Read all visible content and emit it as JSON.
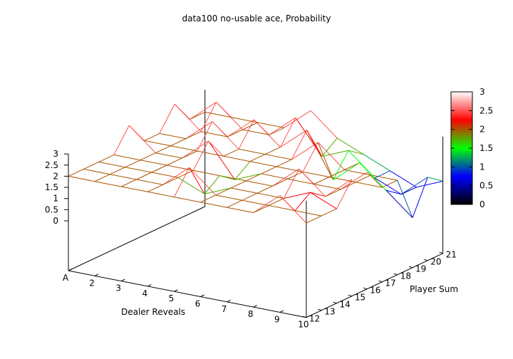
{
  "chart_data": {
    "type": "surface",
    "title": "data100 no-usable ace, Probability",
    "xlabel": "Dealer Reveals",
    "ylabel": "Player Sum",
    "zlabel": "",
    "x": [
      "A",
      "2",
      "3",
      "4",
      "5",
      "6",
      "7",
      "8",
      "9",
      "10"
    ],
    "y": [
      "12",
      "13",
      "14",
      "15",
      "16",
      "17",
      "18",
      "19",
      "20",
      "21"
    ],
    "zlim": [
      0,
      3
    ],
    "z_ticks": [
      "0",
      "0.5",
      "1",
      "1.5",
      "2",
      "2.5",
      "3"
    ],
    "grid": false,
    "colorbox": {
      "position": "right",
      "ticks": [
        "0",
        "0.5",
        "1",
        "1.5",
        "2",
        "2.5",
        "3"
      ],
      "palette": [
        "#000000",
        "#0000ff",
        "#00ff00",
        "#ff0000",
        "#ffffff"
      ]
    },
    "values": [
      [
        2.0,
        2.0,
        2.0,
        2.0,
        2.0,
        2.0,
        2.0,
        2.0,
        3.0,
        2.0
      ],
      [
        2.0,
        2.0,
        2.0,
        2.0,
        3.0,
        2.0,
        2.0,
        2.0,
        2.0,
        2.0
      ],
      [
        2.0,
        2.0,
        2.0,
        2.0,
        1.5,
        2.0,
        2.0,
        2.0,
        2.5,
        2.0
      ],
      [
        2.0,
        2.0,
        2.0,
        2.0,
        2.0,
        2.0,
        2.0,
        3.0,
        2.0,
        3.0
      ],
      [
        3.0,
        2.0,
        2.0,
        3.0,
        1.5,
        2.0,
        2.0,
        2.0,
        2.0,
        3.0
      ],
      [
        2.0,
        2.0,
        2.0,
        2.0,
        2.0,
        2.0,
        2.0,
        2.0,
        2.0,
        2.0
      ],
      [
        2.0,
        2.0,
        3.0,
        2.0,
        2.0,
        2.0,
        3.0,
        2.0,
        2.0,
        2.0
      ],
      [
        3.0,
        2.0,
        2.0,
        3.0,
        2.0,
        3.0,
        1.0,
        2.0,
        1.0,
        0.0
      ],
      [
        2.0,
        3.0,
        2.0,
        2.0,
        3.0,
        1.5,
        2.0,
        1.0,
        0.5,
        1.5
      ],
      [
        2.0,
        2.0,
        2.0,
        2.0,
        3.0,
        2.0,
        1.5,
        1.0,
        0.5,
        1.0
      ]
    ]
  }
}
